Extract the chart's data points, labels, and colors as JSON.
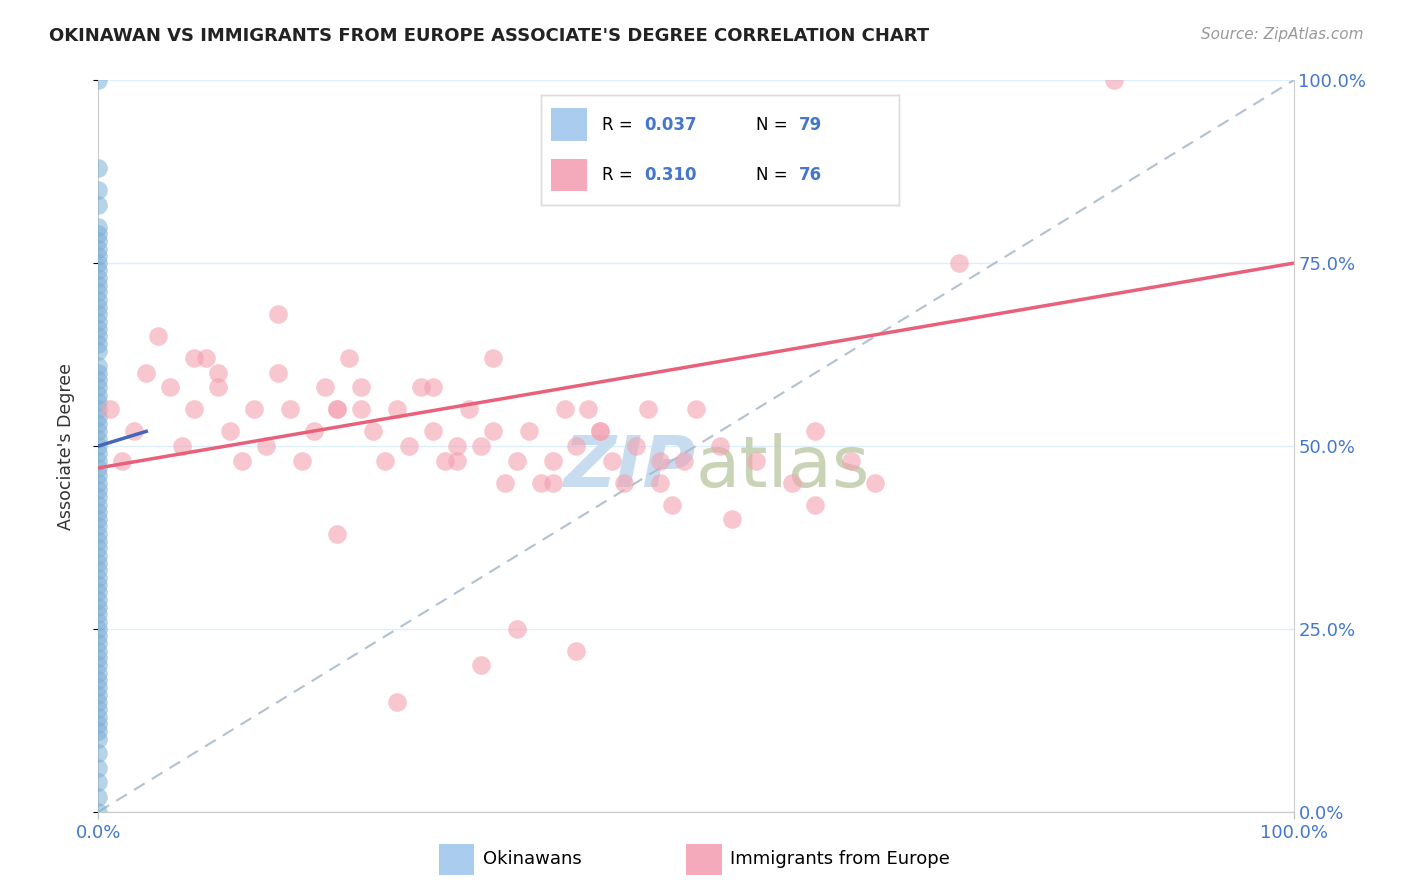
{
  "title": "OKINAWAN VS IMMIGRANTS FROM EUROPE ASSOCIATE'S DEGREE CORRELATION CHART",
  "source": "Source: ZipAtlas.com",
  "ylabel": "Associate's Degree",
  "r1": 0.037,
  "n1": 79,
  "r2": 0.31,
  "n2": 76,
  "blue_scatter": "#7BAFD4",
  "pink_scatter": "#F4A0B0",
  "blue_line_color": "#4466BB",
  "pink_line_color": "#E8607A",
  "diag_color": "#AABBCC",
  "tick_color": "#4477CC",
  "grid_color": "#DDEEFF",
  "watermark_color": "#C8DCF0",
  "xlim": [
    0,
    100
  ],
  "ylim": [
    0,
    100
  ],
  "yticks": [
    0,
    25,
    50,
    75,
    100
  ],
  "ytick_labels": [
    "0.0%",
    "25.0%",
    "50.0%",
    "75.0%",
    "100.0%"
  ],
  "xtick_labels": [
    "0.0%",
    "100.0%"
  ],
  "legend_label1": "Okinawans",
  "legend_label2": "Immigrants from Europe",
  "okin_x": [
    0,
    0,
    0,
    0,
    0,
    0,
    0,
    0,
    0,
    0,
    0,
    0,
    0,
    0,
    0,
    0,
    0,
    0,
    0,
    0,
    0,
    0,
    0,
    0,
    0,
    0,
    0,
    0,
    0,
    0,
    0,
    0,
    0,
    0,
    0,
    0,
    0,
    0,
    0,
    0,
    0,
    0,
    0,
    0,
    0,
    0,
    0,
    0,
    0,
    0,
    0,
    0,
    0,
    0,
    0,
    0,
    0,
    0,
    0,
    0,
    0,
    0,
    0,
    0,
    0,
    0,
    0,
    0,
    0,
    0,
    0,
    0,
    0,
    0,
    0,
    0,
    0,
    0,
    0
  ],
  "okin_y": [
    100,
    88,
    85,
    83,
    80,
    79,
    77,
    75,
    73,
    72,
    70,
    68,
    66,
    65,
    63,
    61,
    60,
    59,
    58,
    57,
    56,
    55,
    54,
    53,
    52,
    51,
    50,
    49,
    48,
    47,
    46,
    45,
    44,
    43,
    42,
    41,
    40,
    39,
    38,
    37,
    36,
    35,
    34,
    33,
    32,
    31,
    30,
    29,
    28,
    27,
    26,
    25,
    24,
    23,
    22,
    21,
    20,
    19,
    18,
    17,
    16,
    15,
    14,
    13,
    12,
    11,
    10,
    8,
    6,
    4,
    2,
    0,
    67,
    64,
    74,
    71,
    69,
    76,
    78
  ],
  "eur_x": [
    1,
    2,
    3,
    4,
    5,
    6,
    7,
    8,
    9,
    10,
    11,
    12,
    13,
    14,
    15,
    16,
    17,
    18,
    19,
    20,
    21,
    22,
    23,
    24,
    25,
    26,
    27,
    28,
    29,
    30,
    31,
    32,
    33,
    34,
    35,
    36,
    37,
    38,
    39,
    40,
    41,
    42,
    43,
    44,
    45,
    46,
    47,
    48,
    49,
    50,
    52,
    55,
    58,
    60,
    63,
    65,
    60,
    85,
    72,
    30,
    20,
    10,
    8,
    15,
    22,
    28,
    33,
    38,
    42,
    47,
    53,
    35,
    40,
    32,
    25,
    20
  ],
  "eur_y": [
    55,
    48,
    52,
    60,
    65,
    58,
    50,
    55,
    62,
    58,
    52,
    48,
    55,
    50,
    60,
    55,
    48,
    52,
    58,
    55,
    62,
    58,
    52,
    48,
    55,
    50,
    58,
    52,
    48,
    48,
    55,
    50,
    52,
    45,
    48,
    52,
    45,
    48,
    55,
    50,
    55,
    52,
    48,
    45,
    50,
    55,
    45,
    42,
    48,
    55,
    50,
    48,
    45,
    52,
    48,
    45,
    42,
    100,
    75,
    50,
    55,
    60,
    62,
    68,
    55,
    58,
    62,
    45,
    52,
    48,
    40,
    25,
    22,
    20,
    15,
    38
  ],
  "pink_line_x0": 0,
  "pink_line_y0": 47,
  "pink_line_x1": 100,
  "pink_line_y1": 75,
  "blue_line_x0": 0,
  "blue_line_y0": 50,
  "blue_line_x1": 4,
  "blue_line_y1": 52
}
